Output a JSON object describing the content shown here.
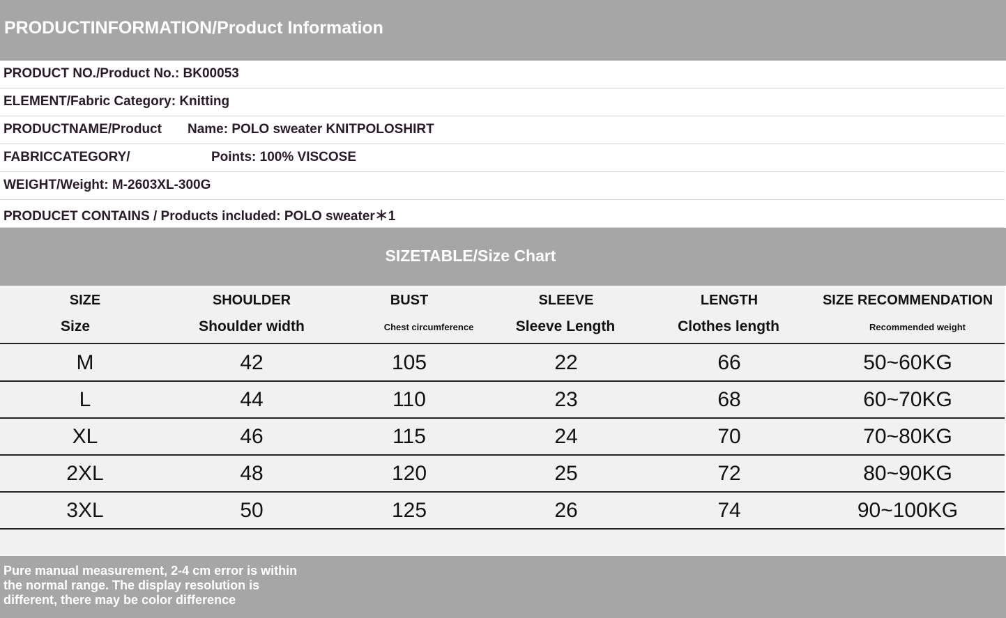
{
  "header": {
    "title": "PRODUCTINFORMATION/Product Information"
  },
  "info": [
    {
      "label": "PRODUCT NO./Product No.: BK00053",
      "value": ""
    },
    {
      "label": "ELEMENT/Fabric Category: Knitting",
      "value": ""
    },
    {
      "label": "PRODUCTNAME/Product",
      "value": "Name: POLO sweater KNITPOLOSHIRT"
    },
    {
      "label": "FABRICCATEGORY/",
      "value": "Points: 100% VISCOSE"
    },
    {
      "label": "WEIGHT/Weight: M-2603XL-300G",
      "value": ""
    },
    {
      "label": "PRODUCET CONTAINS / Products included: POLO sweater＊1",
      "value": ""
    }
  ],
  "size_chart": {
    "title": "SIZETABLE/Size Chart",
    "columns": [
      {
        "en": "SIZE",
        "sub": "Size"
      },
      {
        "en": "SHOULDER",
        "sub": "Shoulder width"
      },
      {
        "en": "BUST",
        "sub": "Chest circumference"
      },
      {
        "en": "SLEEVE",
        "sub": "Sleeve Length"
      },
      {
        "en": "LENGTH",
        "sub": "Clothes length"
      },
      {
        "en": "SIZE RECOMMENDATION",
        "sub": "Recommended weight"
      }
    ],
    "rows": [
      [
        "M",
        "42",
        "105",
        "22",
        "66",
        "50~60KG"
      ],
      [
        "L",
        "44",
        "110",
        "23",
        "68",
        "60~70KG"
      ],
      [
        "XL",
        "46",
        "115",
        "24",
        "70",
        "70~80KG"
      ],
      [
        "2XL",
        "48",
        "120",
        "25",
        "72",
        "80~90KG"
      ],
      [
        "3XL",
        "50",
        "125",
        "26",
        "74",
        "90~100KG"
      ]
    ]
  },
  "footer": {
    "note": "Pure manual measurement, 2-4 cm error is within the normal range. The display resolution is different, there may be color difference"
  },
  "colors": {
    "band": "#a6a6a6",
    "table_bg": "#f1f1f1",
    "info_text": "#2a1a28"
  }
}
